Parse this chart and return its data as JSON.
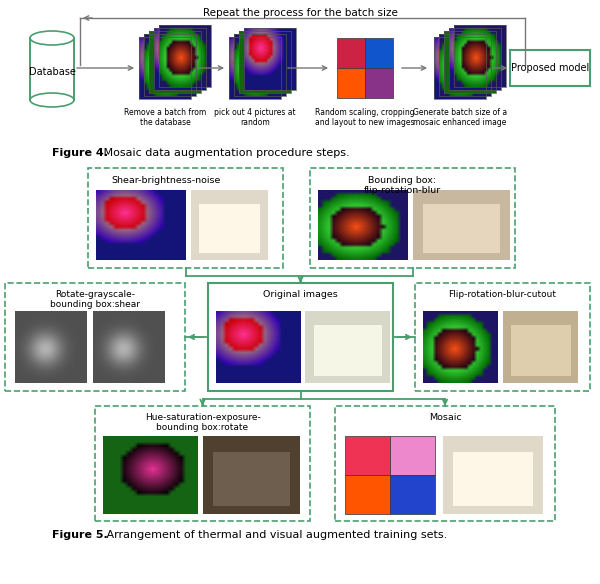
{
  "fig_width": 6.0,
  "fig_height": 5.84,
  "dpi": 100,
  "bg_color": "#ffffff",
  "green": "#4a9e6e",
  "gray": "#777777",
  "top_title": "Repeat the process for the batch size",
  "db_label": "Database",
  "proposed_label": "Proposed model",
  "step_labels": [
    "Remove a batch from\nthe database",
    "pick out 4 pictures at\nrandom",
    "Random scaling, cropping\nand layout to new images",
    "Generate batch size of a\nmosaic enhanced image"
  ],
  "fig4_bold": "Figure 4.",
  "fig4_rest": " Mosaic data augmentation procedure steps.",
  "fig5_bold": "Figure 5.",
  "fig5_rest": " Arrangement of thermal and visual augmented training sets."
}
